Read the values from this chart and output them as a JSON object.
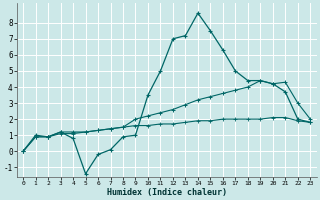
{
  "xlabel": "Humidex (Indice chaleur)",
  "xlim": [
    -0.5,
    23.5
  ],
  "ylim": [
    -1.6,
    9.2
  ],
  "yticks": [
    -1,
    0,
    1,
    2,
    3,
    4,
    5,
    6,
    7,
    8
  ],
  "xticks": [
    0,
    1,
    2,
    3,
    4,
    5,
    6,
    7,
    8,
    9,
    10,
    11,
    12,
    13,
    14,
    15,
    16,
    17,
    18,
    19,
    20,
    21,
    22,
    23
  ],
  "bg_color": "#cce8e8",
  "grid_color": "#ffffff",
  "line_color": "#006666",
  "line1_x": [
    0,
    1,
    2,
    3,
    4,
    5,
    6,
    7,
    8,
    9,
    10,
    11,
    12,
    13,
    14,
    15,
    16,
    17,
    18,
    19,
    20,
    21,
    22,
    23
  ],
  "line1_y": [
    0.0,
    1.0,
    0.9,
    1.2,
    0.8,
    -1.4,
    -0.2,
    0.1,
    0.9,
    1.0,
    3.5,
    5.0,
    7.0,
    7.2,
    8.6,
    7.5,
    6.3,
    5.0,
    4.4,
    4.4,
    4.2,
    3.7,
    2.0,
    1.8
  ],
  "line2_x": [
    0,
    1,
    2,
    3,
    4,
    5,
    6,
    7,
    8,
    9,
    10,
    11,
    12,
    13,
    14,
    15,
    16,
    17,
    18,
    19,
    20,
    21,
    22,
    23
  ],
  "line2_y": [
    0.0,
    0.9,
    0.9,
    1.2,
    1.2,
    1.2,
    1.3,
    1.4,
    1.5,
    2.0,
    2.2,
    2.4,
    2.6,
    2.9,
    3.2,
    3.4,
    3.6,
    3.8,
    4.0,
    4.4,
    4.2,
    4.3,
    3.0,
    2.0
  ],
  "line3_x": [
    0,
    1,
    2,
    3,
    4,
    5,
    6,
    7,
    8,
    9,
    10,
    11,
    12,
    13,
    14,
    15,
    16,
    17,
    18,
    19,
    20,
    21,
    22,
    23
  ],
  "line3_y": [
    0.0,
    0.9,
    0.9,
    1.1,
    1.1,
    1.2,
    1.3,
    1.4,
    1.5,
    1.6,
    1.6,
    1.7,
    1.7,
    1.8,
    1.9,
    1.9,
    2.0,
    2.0,
    2.0,
    2.0,
    2.1,
    2.1,
    1.9,
    1.8
  ]
}
